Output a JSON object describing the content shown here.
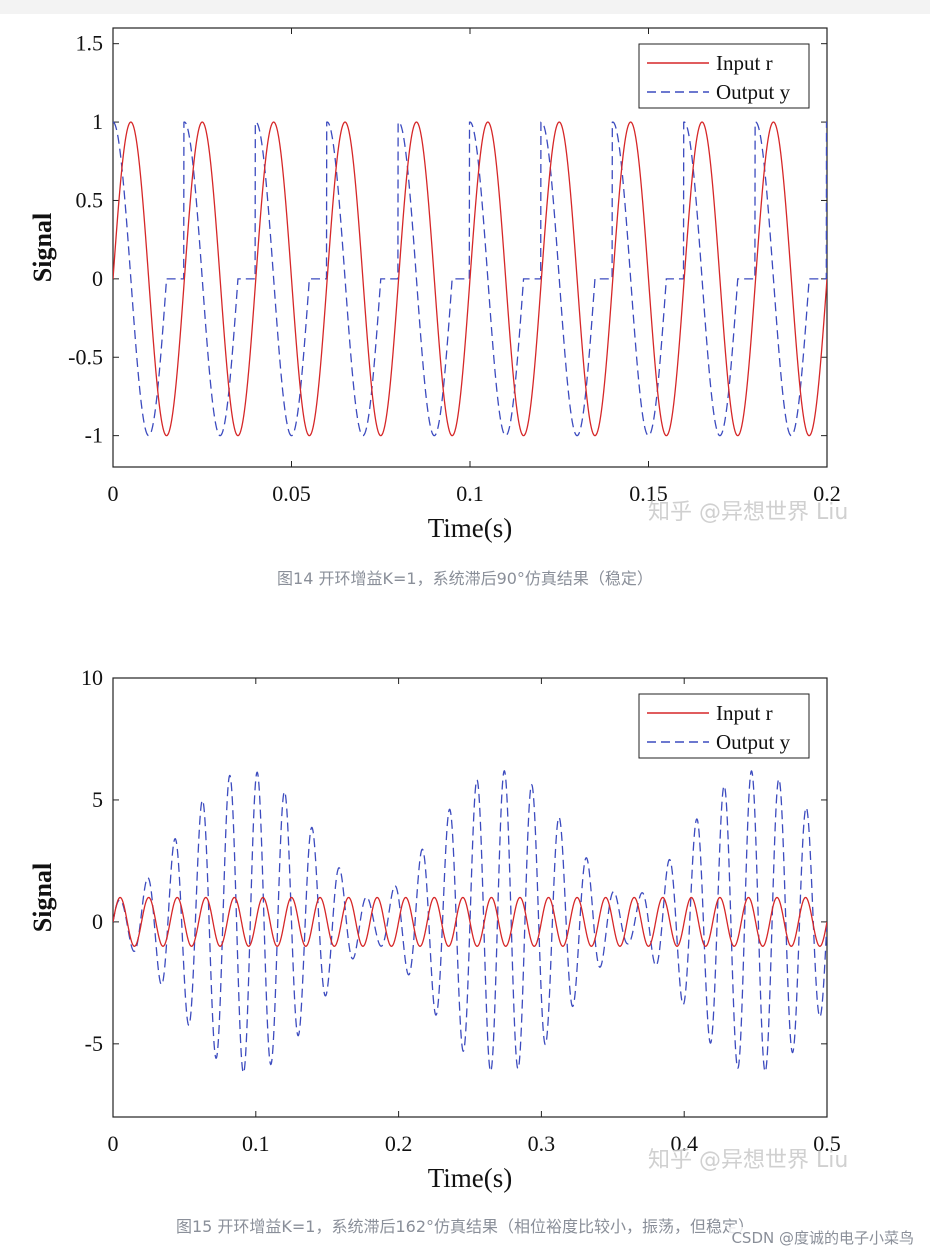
{
  "chart_data": [
    {
      "type": "line",
      "xlabel": "Time(s)",
      "ylabel": "Signal",
      "xlim": [
        0,
        0.2
      ],
      "ylim": [
        -1.2,
        1.6
      ],
      "xticks": [
        0,
        0.05,
        0.1,
        0.15,
        0.2
      ],
      "xtick_labels": [
        "0",
        "0.05",
        "0.1",
        "0.15",
        "0.2"
      ],
      "yticks": [
        -1,
        -0.5,
        0,
        0.5,
        1,
        1.5
      ],
      "ytick_labels": [
        "-1",
        "-0.5",
        "0",
        "0.5",
        "1",
        "1.5"
      ],
      "series": [
        {
          "name": "Input r",
          "style": "solid",
          "color": "#d62728",
          "model": "sine",
          "frequency_hz": 50,
          "amplitude": 1
        },
        {
          "name": "Output y",
          "style": "dashed",
          "color": "#3c4bbf",
          "model": "clipped_sine",
          "frequency_hz": 50,
          "amplitude": 1,
          "phase_lead_deg": 90
        }
      ],
      "legend": "top-right",
      "caption": "图14 开环增益K=1，系统滞后90°仿真结果（稳定）",
      "watermark": "知乎 @异想世界 Liu"
    },
    {
      "type": "line",
      "xlabel": "Time(s)",
      "ylabel": "Signal",
      "xlim": [
        0,
        0.5
      ],
      "ylim": [
        -8,
        10
      ],
      "xticks": [
        0,
        0.1,
        0.2,
        0.3,
        0.4,
        0.5
      ],
      "xtick_labels": [
        "0",
        "0.1",
        "0.2",
        "0.3",
        "0.4",
        "0.5"
      ],
      "yticks": [
        -5,
        0,
        5,
        10
      ],
      "ytick_labels": [
        "-5",
        "0",
        "5",
        "10"
      ],
      "series": [
        {
          "name": "Input r",
          "style": "solid",
          "color": "#d62728",
          "model": "sine",
          "frequency_hz": 50,
          "amplitude": 1
        },
        {
          "name": "Output y",
          "style": "dashed",
          "color": "#3c4bbf",
          "model": "beating_oscillation",
          "frequency_hz": 52,
          "peak_amplitude": 6.2,
          "beat_period_s": 0.178,
          "envelope_minimum": 0.9
        }
      ],
      "legend": "top-right",
      "caption": "图15 开环增益K=1，系统滞后162°仿真结果（相位裕度比较小，振荡，但稳定）",
      "watermark": "知乎 @异想世界 Liu"
    }
  ],
  "footer": {
    "credit": "CSDN @度诚的电子小菜鸟"
  }
}
